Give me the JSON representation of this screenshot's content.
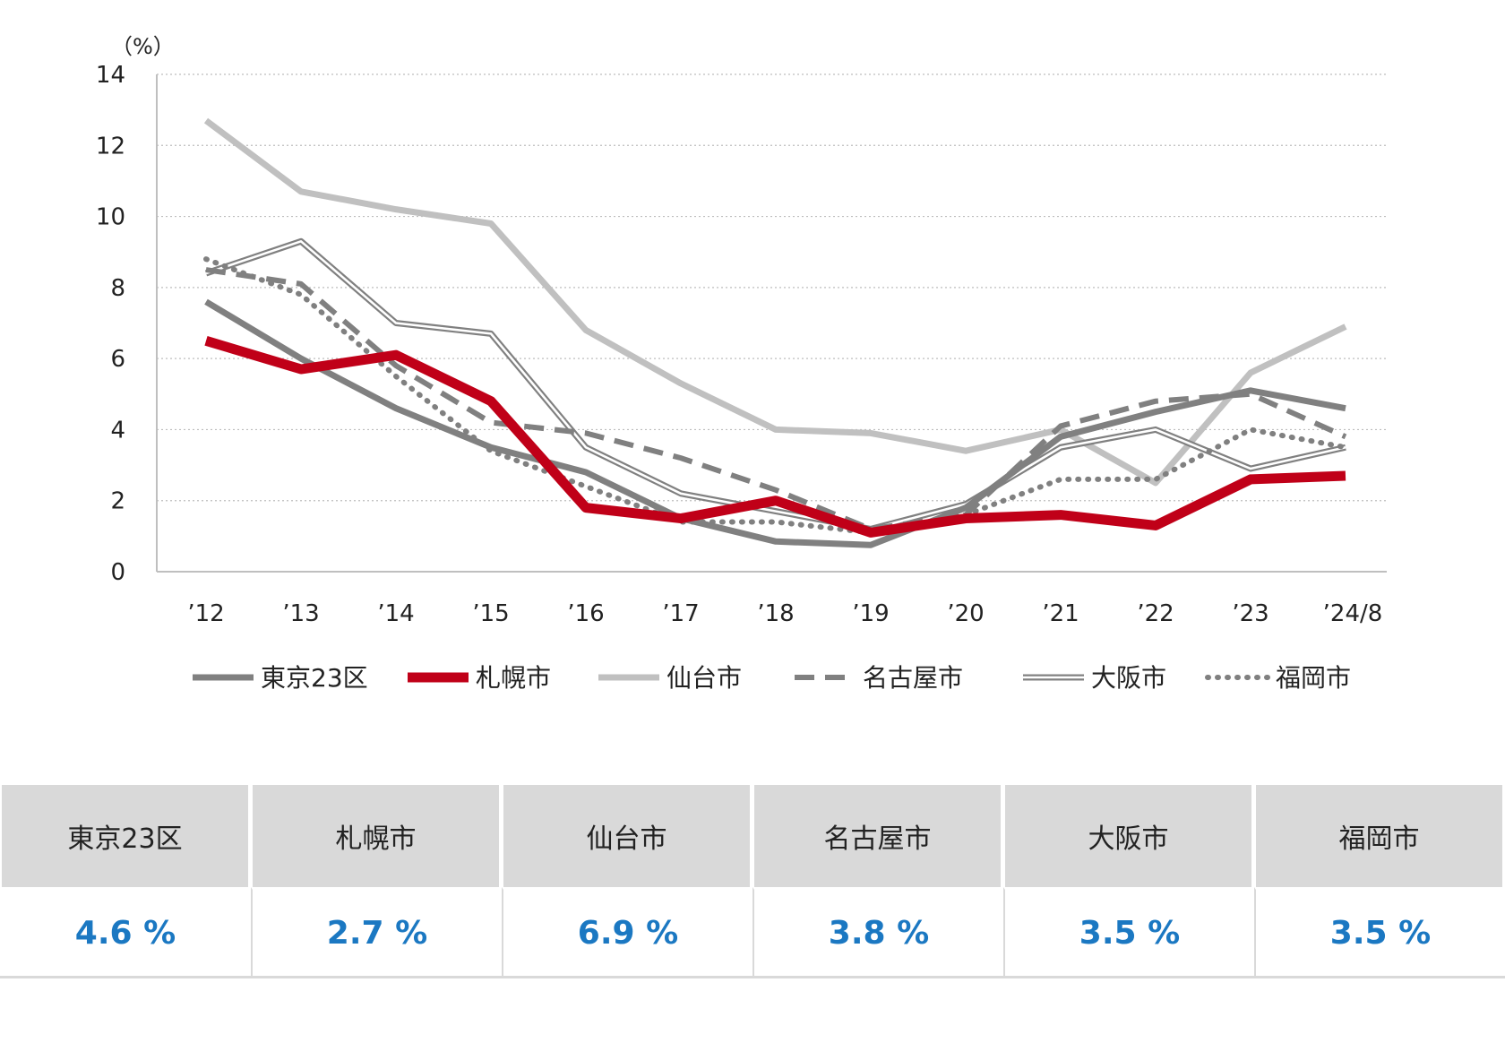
{
  "chart_data": {
    "type": "line",
    "unit_label": "（%）",
    "categories": [
      "’12",
      "’13",
      "’14",
      "’15",
      "’16",
      "’17",
      "’18",
      "’19",
      "’20",
      "’21",
      "’22",
      "’23",
      "’24/8"
    ],
    "ylim": [
      0,
      14
    ],
    "yticks": [
      0,
      2,
      4,
      6,
      8,
      10,
      12,
      14
    ],
    "grid": "horizontal-dotted",
    "legend_position": "bottom",
    "series": [
      {
        "name": "東京23区",
        "color": "#808080",
        "style": "thick",
        "values": [
          7.6,
          6.0,
          4.6,
          3.5,
          2.8,
          1.5,
          0.85,
          0.75,
          1.8,
          3.8,
          4.5,
          5.1,
          4.6
        ]
      },
      {
        "name": "札幌市",
        "color": "#c00018",
        "style": "bold",
        "values": [
          6.5,
          5.7,
          6.1,
          4.8,
          1.8,
          1.5,
          2.0,
          1.1,
          1.5,
          1.6,
          1.3,
          2.6,
          2.7
        ]
      },
      {
        "name": "仙台市",
        "color": "#c0c0c0",
        "style": "thick",
        "values": [
          12.7,
          10.7,
          10.2,
          9.8,
          6.8,
          5.3,
          4.0,
          3.9,
          3.4,
          4.0,
          2.5,
          5.6,
          6.9
        ]
      },
      {
        "name": "名古屋市",
        "color": "#808080",
        "style": "dashed",
        "values": [
          8.5,
          8.1,
          5.8,
          4.2,
          3.9,
          3.2,
          2.3,
          1.2,
          1.6,
          4.1,
          4.8,
          5.0,
          3.8
        ]
      },
      {
        "name": "大阪市",
        "color": "#808080",
        "style": "double",
        "values": [
          8.4,
          9.3,
          7.0,
          6.7,
          3.5,
          2.2,
          1.7,
          1.2,
          1.9,
          3.5,
          4.0,
          2.9,
          3.5
        ]
      },
      {
        "name": "福岡市",
        "color": "#808080",
        "style": "dotted",
        "values": [
          8.8,
          7.8,
          5.5,
          3.4,
          2.4,
          1.4,
          1.4,
          1.1,
          1.6,
          2.6,
          2.6,
          4.0,
          3.5
        ]
      }
    ]
  },
  "summary": {
    "headers": [
      "東京23区",
      "札幌市",
      "仙台市",
      "名古屋市",
      "大阪市",
      "福岡市"
    ],
    "values": [
      "4.6 %",
      "2.7 %",
      "6.9 %",
      "3.8 %",
      "3.5 %",
      "3.5 %"
    ]
  }
}
